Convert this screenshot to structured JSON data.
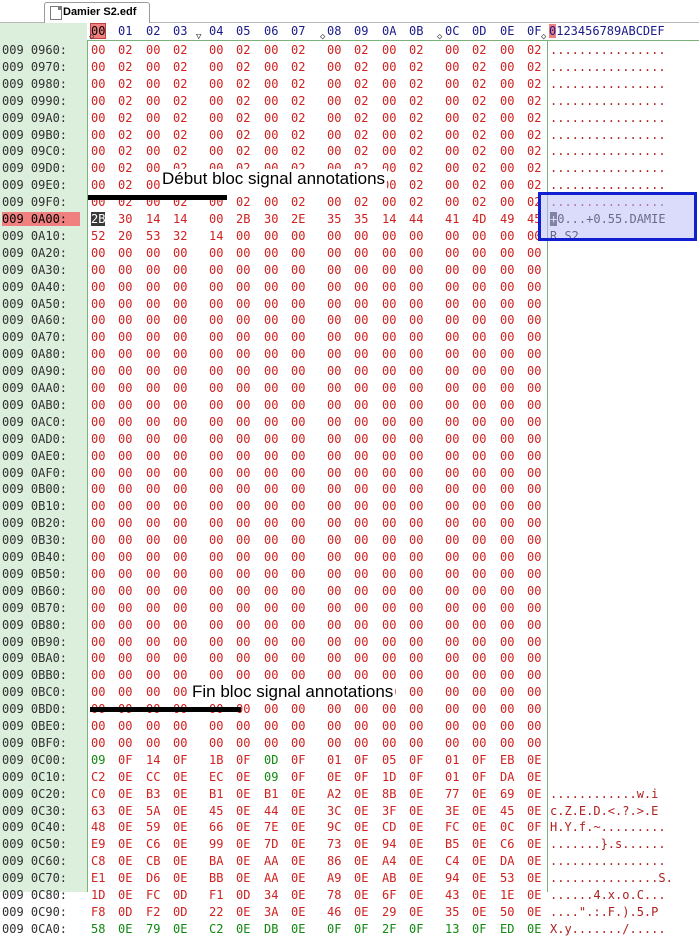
{
  "tab": {
    "label": "Damier S2.edf"
  },
  "header": {
    "cols": [
      "00",
      "01",
      "02",
      "03",
      "04",
      "05",
      "06",
      "07",
      "08",
      "09",
      "0A",
      "0B",
      "0C",
      "0D",
      "0E",
      "0F"
    ],
    "ascii_first": "0",
    "ascii_rest": "123456789ABCDEF"
  },
  "annotations": {
    "start": "Début bloc signal annotations",
    "end": "Fin bloc signal annotations"
  },
  "rows": [
    {
      "off": "009 0960:",
      "bytes": "00 02 00 02 00 02 00 02 00 02 00 02 00 02 00 02",
      "ascii": "................"
    },
    {
      "off": "009 0970:",
      "bytes": "00 02 00 02 00 02 00 02 00 02 00 02 00 02 00 02",
      "ascii": "................"
    },
    {
      "off": "009 0980:",
      "bytes": "00 02 00 02 00 02 00 02 00 02 00 02 00 02 00 02",
      "ascii": "................"
    },
    {
      "off": "009 0990:",
      "bytes": "00 02 00 02 00 02 00 02 00 02 00 02 00 02 00 02",
      "ascii": "................"
    },
    {
      "off": "009 09A0:",
      "bytes": "00 02 00 02 00 02 00 02 00 02 00 02 00 02 00 02",
      "ascii": "................"
    },
    {
      "off": "009 09B0:",
      "bytes": "00 02 00 02 00 02 00 02 00 02 00 02 00 02 00 02",
      "ascii": "................"
    },
    {
      "off": "009 09C0:",
      "bytes": "00 02 00 02 00 02 00 02 00 02 00 02 00 02 00 02",
      "ascii": "................"
    },
    {
      "off": "009 09D0:",
      "bytes": "00 02 00 02 00 02 00 02 00 02 00 02 00 02 00 02",
      "ascii": "................"
    },
    {
      "off": "009 09E0:",
      "bytes": "00 02 00 02 00 02 00 02 00 02 00 02 00 02 00 02",
      "ascii": "................"
    },
    {
      "off": "009 09F0:",
      "bytes": "00 02 00 02 00 02 00 02 00 02 00 02 00 02 00 02",
      "ascii": "................"
    },
    {
      "off": "009 0A00:",
      "bytes": "2B 30 14 14 00 2B 30 2E 35 35 14 44 41 4D 49 45",
      "ascii": "+0...+0.55.DAMIE",
      "selected": true
    },
    {
      "off": "009 0A10:",
      "bytes": "52 20 53 32 14 00 00 00 00 00 00 00 00 00 00 00",
      "ascii": "R S2............"
    },
    {
      "off": "009 0A20:",
      "bytes": "00 00 00 00 00 00 00 00 00 00 00 00 00 00 00 00",
      "ascii": ""
    },
    {
      "off": "009 0A30:",
      "bytes": "00 00 00 00 00 00 00 00 00 00 00 00 00 00 00 00",
      "ascii": ""
    },
    {
      "off": "009 0A40:",
      "bytes": "00 00 00 00 00 00 00 00 00 00 00 00 00 00 00 00",
      "ascii": ""
    },
    {
      "off": "009 0A50:",
      "bytes": "00 00 00 00 00 00 00 00 00 00 00 00 00 00 00 00",
      "ascii": ""
    },
    {
      "off": "009 0A60:",
      "bytes": "00 00 00 00 00 00 00 00 00 00 00 00 00 00 00 00",
      "ascii": ""
    },
    {
      "off": "009 0A70:",
      "bytes": "00 00 00 00 00 00 00 00 00 00 00 00 00 00 00 00",
      "ascii": ""
    },
    {
      "off": "009 0A80:",
      "bytes": "00 00 00 00 00 00 00 00 00 00 00 00 00 00 00 00",
      "ascii": ""
    },
    {
      "off": "009 0A90:",
      "bytes": "00 00 00 00 00 00 00 00 00 00 00 00 00 00 00 00",
      "ascii": ""
    },
    {
      "off": "009 0AA0:",
      "bytes": "00 00 00 00 00 00 00 00 00 00 00 00 00 00 00 00",
      "ascii": ""
    },
    {
      "off": "009 0AB0:",
      "bytes": "00 00 00 00 00 00 00 00 00 00 00 00 00 00 00 00",
      "ascii": ""
    },
    {
      "off": "009 0AC0:",
      "bytes": "00 00 00 00 00 00 00 00 00 00 00 00 00 00 00 00",
      "ascii": ""
    },
    {
      "off": "009 0AD0:",
      "bytes": "00 00 00 00 00 00 00 00 00 00 00 00 00 00 00 00",
      "ascii": ""
    },
    {
      "off": "009 0AE0:",
      "bytes": "00 00 00 00 00 00 00 00 00 00 00 00 00 00 00 00",
      "ascii": ""
    },
    {
      "off": "009 0AF0:",
      "bytes": "00 00 00 00 00 00 00 00 00 00 00 00 00 00 00 00",
      "ascii": ""
    },
    {
      "off": "009 0B00:",
      "bytes": "00 00 00 00 00 00 00 00 00 00 00 00 00 00 00 00",
      "ascii": ""
    },
    {
      "off": "009 0B10:",
      "bytes": "00 00 00 00 00 00 00 00 00 00 00 00 00 00 00 00",
      "ascii": ""
    },
    {
      "off": "009 0B20:",
      "bytes": "00 00 00 00 00 00 00 00 00 00 00 00 00 00 00 00",
      "ascii": ""
    },
    {
      "off": "009 0B30:",
      "bytes": "00 00 00 00 00 00 00 00 00 00 00 00 00 00 00 00",
      "ascii": ""
    },
    {
      "off": "009 0B40:",
      "bytes": "00 00 00 00 00 00 00 00 00 00 00 00 00 00 00 00",
      "ascii": ""
    },
    {
      "off": "009 0B50:",
      "bytes": "00 00 00 00 00 00 00 00 00 00 00 00 00 00 00 00",
      "ascii": ""
    },
    {
      "off": "009 0B60:",
      "bytes": "00 00 00 00 00 00 00 00 00 00 00 00 00 00 00 00",
      "ascii": ""
    },
    {
      "off": "009 0B70:",
      "bytes": "00 00 00 00 00 00 00 00 00 00 00 00 00 00 00 00",
      "ascii": ""
    },
    {
      "off": "009 0B80:",
      "bytes": "00 00 00 00 00 00 00 00 00 00 00 00 00 00 00 00",
      "ascii": ""
    },
    {
      "off": "009 0B90:",
      "bytes": "00 00 00 00 00 00 00 00 00 00 00 00 00 00 00 00",
      "ascii": ""
    },
    {
      "off": "009 0BA0:",
      "bytes": "00 00 00 00 00 00 00 00 00 00 00 00 00 00 00 00",
      "ascii": ""
    },
    {
      "off": "009 0BB0:",
      "bytes": "00 00 00 00 00 00 00 00 00 00 00 00 00 00 00 00",
      "ascii": ""
    },
    {
      "off": "009 0BC0:",
      "bytes": "00 00 00 00 00 00 00 00 00 00 00 00 00 00 00 00",
      "ascii": ""
    },
    {
      "off": "009 0BD0:",
      "bytes": "00 00 00 00 00 00 00 00 00 00 00 00 00 00 00 00",
      "ascii": ""
    },
    {
      "off": "009 0BE0:",
      "bytes": "00 00 00 00 00 00 00 00 00 00 00 00 00 00 00 00",
      "ascii": ""
    },
    {
      "off": "009 0BF0:",
      "bytes": "00 00 00 00 00 00 00 00 00 00 00 00 00 00 00 00",
      "ascii": ""
    },
    {
      "off": "009 0C00:",
      "bytes": "09 0F 14 0F 1B 0F 0D 0F 01 0F 05 0F 01 0F EB 0E",
      "ascii": ""
    },
    {
      "off": "009 0C10:",
      "bytes": "C2 0E CC 0E EC 0E 09 0F 0E 0F 1D 0F 01 0F DA 0E",
      "ascii": ""
    },
    {
      "off": "009 0C20:",
      "bytes": "C0 0E B3 0E B1 0E B1 0E A2 0E 8B 0E 77 0E 69 0E",
      "ascii": "............w.i"
    },
    {
      "off": "009 0C30:",
      "bytes": "63 0E 5A 0E 45 0E 44 0E 3C 0E 3F 0E 3E 0E 45 0E",
      "ascii": "c.Z.E.D.<.?.>.E"
    },
    {
      "off": "009 0C40:",
      "bytes": "48 0E 59 0E 66 0E 7E 0E 9C 0E CD 0E FC 0E 0C 0F",
      "ascii": "H.Y.f.~........."
    },
    {
      "off": "009 0C50:",
      "bytes": "E9 0E C6 0E 99 0E 7D 0E 73 0E 94 0E B5 0E C6 0E",
      "ascii": ".......}.s......"
    },
    {
      "off": "009 0C60:",
      "bytes": "C8 0E CB 0E BA 0E AA 0E 86 0E A4 0E C4 0E DA 0E",
      "ascii": "................"
    },
    {
      "off": "009 0C70:",
      "bytes": "E1 0E D6 0E BB 0E AA 0E A9 0E AB 0E 94 0E 53 0E",
      "ascii": "...............S."
    },
    {
      "off": "009 0C80:",
      "bytes": "1D 0E FC 0D F1 0D 34 0E 78 0E 6F 0E 43 0E 1E 0E",
      "ascii": "......4.x.o.C..."
    },
    {
      "off": "009 0C90:",
      "bytes": "F8 0D F2 0D 22 0E 3A 0E 46 0E 29 0E 35 0E 50 0E",
      "ascii": "....\".:.F.).5.P"
    },
    {
      "off": "009 0CA0:",
      "bytes": "58 0E 79 0E C2 0E DB 0E 0F 0F 2F 0F 13 0F ED 0E",
      "ascii": "X.y......./....."
    }
  ]
}
